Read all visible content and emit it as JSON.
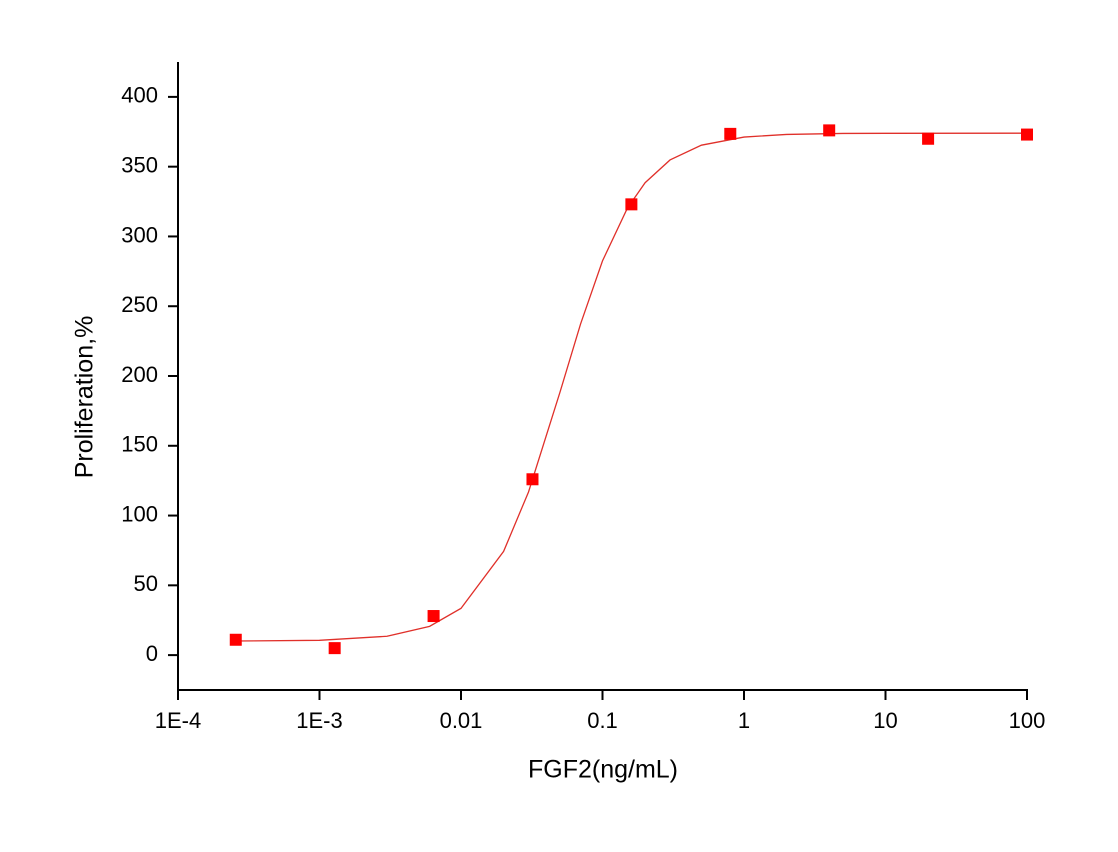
{
  "chart_data": {
    "type": "scatter",
    "xlabel": "FGF2(ng/mL)",
    "ylabel": "Proliferation,%",
    "xscale": "log",
    "xlim": [
      0.0001,
      100
    ],
    "ylim": [
      -25,
      425
    ],
    "xticks": [
      {
        "value": 0.0001,
        "label": "1E-4"
      },
      {
        "value": 0.001,
        "label": "1E-3"
      },
      0.01,
      0.1,
      1,
      10,
      100
    ],
    "yticks": [
      0,
      50,
      100,
      150,
      200,
      250,
      300,
      350,
      400
    ],
    "series": [
      {
        "type": "scatter",
        "color": "#ff0000",
        "x": [
          0.000256,
          0.00128,
          0.0064,
          0.032,
          0.16,
          0.8,
          4,
          20,
          100
        ],
        "values": [
          11,
          5,
          28,
          126,
          323,
          373.5,
          376,
          370,
          373
        ]
      },
      {
        "type": "line",
        "color": "#e0302a",
        "x": [
          0.000256,
          0.001,
          0.003,
          0.006,
          0.01,
          0.02,
          0.03,
          0.05,
          0.07,
          0.1,
          0.15,
          0.2,
          0.3,
          0.5,
          1,
          2,
          5,
          10,
          100
        ],
        "values": [
          10.1,
          10.6,
          13.5,
          20.6,
          33.5,
          74.3,
          116.9,
          188.2,
          237.3,
          282.5,
          320.3,
          338.5,
          354.8,
          365.4,
          371.2,
          373.1,
          373.8,
          373.9,
          374.0
        ]
      }
    ]
  }
}
